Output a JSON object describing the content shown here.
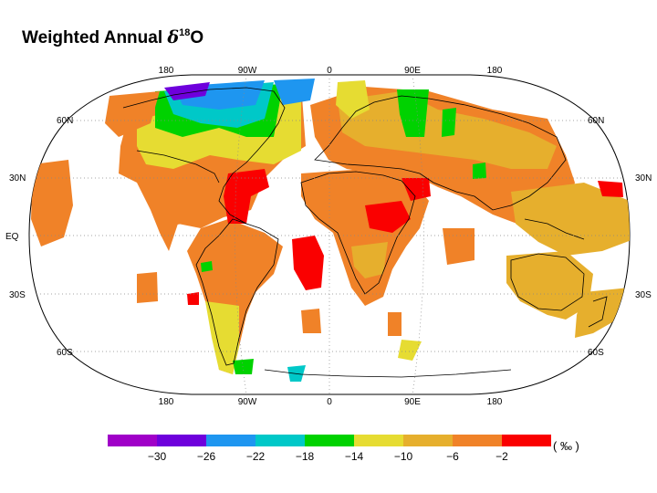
{
  "title": {
    "text": "Weighted Annual ",
    "symbol": "δ",
    "superscript": "18",
    "suffix": "O"
  },
  "map": {
    "projection": "robinson",
    "lon_labels": [
      "180",
      "90W",
      "0",
      "90E",
      "180"
    ],
    "lat_labels": [
      "60N",
      "30N",
      "EQ",
      "30S",
      "60S"
    ]
  },
  "colorbar": {
    "tick_labels": [
      "−30",
      "−26",
      "−22",
      "−18",
      "−14",
      "−10",
      "−6",
      "−2"
    ],
    "unit": "( ‰ )",
    "colors": [
      "#a000c8",
      "#6e00dc",
      "#1e96f0",
      "#00c8c8",
      "#00d200",
      "#e6dc32",
      "#e6af2d",
      "#f08228",
      "#fa0000"
    ]
  }
}
